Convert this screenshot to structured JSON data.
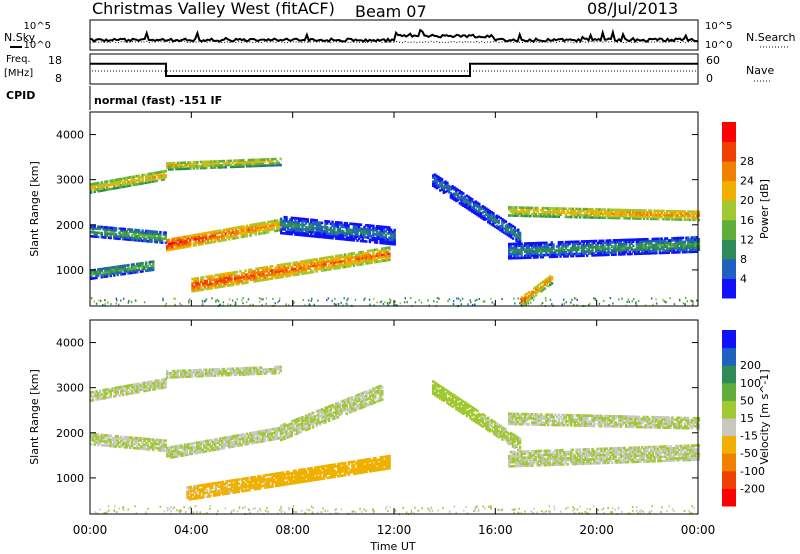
{
  "header": {
    "station": "Christmas Valley West (fitACF)",
    "beam": "Beam 07",
    "date": "08/Jul/2013"
  },
  "top_panels": {
    "nsky_label": "N.Sky",
    "nsearch_label": "N.Search",
    "noise_ticks": [
      "10^5",
      "10^0"
    ],
    "freq_label_1": "Freq.",
    "freq_label_2": "[MHz]",
    "freq_ticks": [
      "18",
      "8"
    ],
    "nave_label": "Nave",
    "nave_ticks": [
      "60",
      "0"
    ],
    "cpid_label": "CPID",
    "cpid_text": "normal (fast) -151 IF",
    "freq_steps": [
      {
        "from_hour": 0,
        "to_hour": 3.0,
        "freq_mhz": 15.0
      },
      {
        "from_hour": 3.0,
        "to_hour": 15.0,
        "freq_mhz": 10.3
      },
      {
        "from_hour": 15.0,
        "to_hour": 24,
        "freq_mhz": 15.0
      }
    ]
  },
  "colors": {
    "power_scale": [
      "#1010ff",
      "#2060c0",
      "#2e8b57",
      "#5fae3a",
      "#a0c830",
      "#f0b000",
      "#f08000",
      "#f04000",
      "#ff0000"
    ],
    "velocity_scale": [
      "#ff0000",
      "#f04000",
      "#f08000",
      "#f0b000",
      "#c8c8c0",
      "#a0c830",
      "#5fae3a",
      "#2e8b57",
      "#2060c0",
      "#1010ff"
    ]
  },
  "chart_data": [
    {
      "type": "heatmap",
      "name": "power-panel",
      "ylabel": "Slant Range [km]",
      "xlim": [
        0,
        24
      ],
      "ylim": [
        200,
        4500
      ],
      "yticks": [
        "1000",
        "2000",
        "3000",
        "4000"
      ],
      "ytick_values": [
        1000,
        2000,
        3000,
        4000
      ],
      "colorbar_label": "Power [dB]",
      "colorbar_ticks": [
        "4",
        "8",
        "12",
        "16",
        "20",
        "24",
        "28"
      ],
      "colorbar_range": [
        0,
        32
      ],
      "bands": [
        {
          "t0": 3.0,
          "t1": 7.5,
          "r0": 1550,
          "r1": 2000,
          "v0": 30,
          "v1": 22,
          "thickness": 260
        },
        {
          "t0": 0.0,
          "t1": 3.0,
          "r0": 1850,
          "r1": 1700,
          "v0": 12,
          "v1": 14,
          "thickness": 240
        },
        {
          "t0": 4.0,
          "t1": 11.8,
          "r0": 650,
          "r1": 1350,
          "v0": 28,
          "v1": 24,
          "thickness": 280
        },
        {
          "t0": 3.0,
          "t1": 7.5,
          "r0": 3300,
          "r1": 3400,
          "v0": 20,
          "v1": 18,
          "thickness": 180
        },
        {
          "t0": 0.0,
          "t1": 3.0,
          "r0": 2800,
          "r1": 3100,
          "v0": 20,
          "v1": 22,
          "thickness": 200
        },
        {
          "t0": 7.5,
          "t1": 12.0,
          "r0": 2000,
          "r1": 1750,
          "v0": 10,
          "v1": 8,
          "thickness": 400
        },
        {
          "t0": 13.5,
          "t1": 17.0,
          "r0": 3000,
          "r1": 1700,
          "v0": 8,
          "v1": 10,
          "thickness": 300
        },
        {
          "t0": 16.5,
          "t1": 24.0,
          "r0": 2300,
          "r1": 2200,
          "v0": 20,
          "v1": 24,
          "thickness": 220
        },
        {
          "t0": 16.5,
          "t1": 24.0,
          "r0": 1400,
          "r1": 1550,
          "v0": 10,
          "v1": 12,
          "thickness": 320
        },
        {
          "t0": 17.0,
          "t1": 18.2,
          "r0": 300,
          "r1": 800,
          "v0": 26,
          "v1": 22,
          "thickness": 220
        },
        {
          "t0": 0.0,
          "t1": 2.5,
          "r0": 900,
          "r1": 1100,
          "v0": 12,
          "v1": 14,
          "thickness": 220
        }
      ]
    },
    {
      "type": "heatmap",
      "name": "velocity-panel",
      "ylabel": "Slant Range [km]",
      "xlabel": "Time UT",
      "xlim": [
        0,
        24
      ],
      "ylim": [
        200,
        4500
      ],
      "xticks": [
        "00:00",
        "04:00",
        "08:00",
        "12:00",
        "16:00",
        "20:00",
        "00:00"
      ],
      "xtick_values": [
        0,
        4,
        8,
        12,
        16,
        20,
        24
      ],
      "yticks": [
        "1000",
        "2000",
        "3000",
        "4000"
      ],
      "ytick_values": [
        1000,
        2000,
        3000,
        4000
      ],
      "colorbar_label": "Velocity [m s^-1]",
      "colorbar_ticks": [
        "-200",
        "-100",
        "-50",
        "-15",
        "15",
        "50",
        "100",
        "200"
      ],
      "colorbar_range": [
        -250,
        250
      ],
      "bands": [
        {
          "t0": 3.8,
          "t1": 11.8,
          "r0": 650,
          "r1": 1350,
          "v0": -60,
          "v1": -70,
          "thickness": 300
        },
        {
          "t0": 3.0,
          "t1": 7.5,
          "r0": 1550,
          "r1": 2000,
          "v0": 0,
          "v1": 0,
          "thickness": 260
        },
        {
          "t0": 0.0,
          "t1": 3.0,
          "r0": 1850,
          "r1": 1700,
          "v0": 0,
          "v1": 0,
          "thickness": 240
        },
        {
          "t0": 3.0,
          "t1": 7.5,
          "r0": 3300,
          "r1": 3400,
          "v0": 0,
          "v1": 0,
          "thickness": 180
        },
        {
          "t0": 0.0,
          "t1": 3.0,
          "r0": 2800,
          "r1": 3100,
          "v0": 0,
          "v1": 0,
          "thickness": 200
        },
        {
          "t0": 7.5,
          "t1": 11.5,
          "r0": 2000,
          "r1": 2900,
          "v0": 0,
          "v1": 0,
          "thickness": 350
        },
        {
          "t0": 13.5,
          "t1": 17.0,
          "r0": 3000,
          "r1": 1700,
          "v0": 30,
          "v1": 0,
          "thickness": 300
        },
        {
          "t0": 16.5,
          "t1": 24.0,
          "r0": 2300,
          "r1": 2200,
          "v0": 0,
          "v1": 0,
          "thickness": 240
        },
        {
          "t0": 16.5,
          "t1": 24.0,
          "r0": 1400,
          "r1": 1550,
          "v0": 0,
          "v1": 0,
          "thickness": 320
        }
      ]
    }
  ]
}
